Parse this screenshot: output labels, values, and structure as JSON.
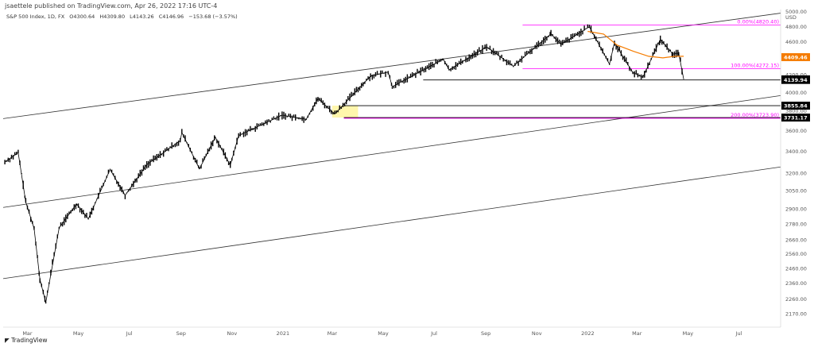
{
  "header": {
    "published": "jsaettele published on TradingView.com, Apr 26, 2022 17:16 UTC-4"
  },
  "legend": {
    "symbol": "S&P 500 Index, 1D, FX",
    "open": "O4300.64",
    "high": "H4309.80",
    "low": "L4143.26",
    "close": "C4146.96",
    "change": "−153.68 (−3.57%)"
  },
  "footer": {
    "brand": "TradingView"
  },
  "colors": {
    "accent": "#ff00ff",
    "ma": "#f57c00",
    "candle": "#000000",
    "zone": "#fff59d"
  },
  "chart_data": {
    "type": "line",
    "series_note": "",
    "currency": "USD",
    "x_range": [
      "2020-02-01",
      "2022-08-20"
    ],
    "ylim": [
      2090,
      5030
    ],
    "y_scale": "log",
    "x_ticks": [
      "Mar",
      "May",
      "Jul",
      "Sep",
      "Nov",
      "2021",
      "Mar",
      "May",
      "Jul",
      "Sep",
      "Nov",
      "2022",
      "Mar",
      "May",
      "Jul"
    ],
    "x_tick_dates": [
      "2020-03-01",
      "2020-05-01",
      "2020-07-01",
      "2020-09-01",
      "2020-11-01",
      "2021-01-01",
      "2021-03-01",
      "2021-05-01",
      "2021-07-01",
      "2021-09-01",
      "2021-11-01",
      "2022-01-01",
      "2022-03-01",
      "2022-05-01",
      "2022-07-01"
    ],
    "y_ticks": [
      2170,
      2260,
      2360,
      2460,
      2560,
      2660,
      2780,
      2900,
      3050,
      3200,
      3400,
      3600,
      3800,
      4000,
      4200,
      4400,
      4600,
      4800,
      5000
    ],
    "y_tick_labels": [
      "2170.00",
      "2260.00",
      "2360.00",
      "2460.00",
      "2560.00",
      "2660.00",
      "2780.00",
      "2900.00",
      "3050.00",
      "3200.00",
      "3400.00",
      "3600.00",
      "3800.00",
      "4000.00",
      "4200.00",
      "4400.00",
      "4600.00",
      "4800.00",
      "5000.00"
    ],
    "price_path": [
      [
        "2020-02-03",
        3300
      ],
      [
        "2020-02-19",
        3386
      ],
      [
        "2020-02-28",
        2954
      ],
      [
        "2020-03-09",
        2746
      ],
      [
        "2020-03-16",
        2386
      ],
      [
        "2020-03-23",
        2237
      ],
      [
        "2020-04-08",
        2750
      ],
      [
        "2020-04-29",
        2939
      ],
      [
        "2020-05-13",
        2820
      ],
      [
        "2020-06-08",
        3232
      ],
      [
        "2020-06-26",
        3009
      ],
      [
        "2020-07-22",
        3276
      ],
      [
        "2020-08-31",
        3500
      ],
      [
        "2020-09-02",
        3580
      ],
      [
        "2020-09-23",
        3237
      ],
      [
        "2020-10-12",
        3534
      ],
      [
        "2020-10-30",
        3270
      ],
      [
        "2020-11-09",
        3550
      ],
      [
        "2020-12-31",
        3756
      ],
      [
        "2021-01-29",
        3714
      ],
      [
        "2021-02-12",
        3934
      ],
      [
        "2021-03-04",
        3768
      ],
      [
        "2021-04-16",
        4185
      ],
      [
        "2021-05-12",
        4063
      ],
      [
        "2021-05-07",
        4232
      ],
      [
        "2021-07-12",
        4384
      ],
      [
        "2021-07-19",
        4258
      ],
      [
        "2021-08-31",
        4523
      ],
      [
        "2021-09-02",
        4537
      ],
      [
        "2021-10-04",
        4300
      ],
      [
        "2021-11-18",
        4704
      ],
      [
        "2021-11-30",
        4567
      ],
      [
        "2022-01-03",
        4796
      ],
      [
        "2022-01-27",
        4326
      ],
      [
        "2022-02-02",
        4589
      ],
      [
        "2022-02-24",
        4225
      ],
      [
        "2022-03-08",
        4170
      ],
      [
        "2022-03-29",
        4631
      ],
      [
        "2022-04-13",
        4446
      ],
      [
        "2022-04-20",
        4459
      ],
      [
        "2022-04-26",
        4147
      ]
    ],
    "moving_average": [
      [
        "2022-01-01",
        4735
      ],
      [
        "2022-01-20",
        4700
      ],
      [
        "2022-02-05",
        4560
      ],
      [
        "2022-02-25",
        4480
      ],
      [
        "2022-03-15",
        4420
      ],
      [
        "2022-04-01",
        4400
      ],
      [
        "2022-04-15",
        4420
      ],
      [
        "2022-04-26",
        4420
      ]
    ],
    "horizontal_levels": [
      {
        "value": 4820.4,
        "label": "0.00%(4820.40)",
        "color": "#ff00ff",
        "from": "2021-10-15"
      },
      {
        "value": 4272.15,
        "label": "100.00%(4272.15)",
        "color": "#ff00ff",
        "from": "2021-10-15"
      },
      {
        "value": 4139.94,
        "label": "",
        "color": "#000000",
        "from": "2021-06-18"
      },
      {
        "value": 3855.84,
        "label": "",
        "color": "#000000",
        "from": "2021-03-15"
      },
      {
        "value": 3731.17,
        "label": "",
        "color": "#000000",
        "from": "2021-03-15"
      },
      {
        "value": 3723.9,
        "label": "200.00%(3723.90)",
        "color": "#ff00ff",
        "from": "2021-03-15"
      }
    ],
    "price_labels": [
      {
        "value": 4409.46,
        "text": "4409.46",
        "bg": "#f57c00"
      },
      {
        "value": 4146.96,
        "text": "4146.96",
        "bg": "#000000"
      },
      {
        "value": 4139.94,
        "text": "4139.94",
        "bg": "#000000"
      },
      {
        "value": 3855.84,
        "text": "3855.84",
        "bg": "#000000"
      },
      {
        "value": 3731.17,
        "text": "3731.17",
        "bg": "#000000"
      }
    ],
    "trend_lines": [
      [
        [
          "2020-02-01",
          3720
        ],
        [
          "2022-08-20",
          4980
        ]
      ],
      [
        [
          "2020-02-01",
          2910
        ],
        [
          "2022-08-20",
          3965
        ]
      ],
      [
        [
          "2020-02-01",
          2390
        ],
        [
          "2022-08-20",
          3255
        ]
      ]
    ],
    "zone": {
      "x0": "2021-03-01",
      "x1": "2021-04-01",
      "y0": 3731.17,
      "y1": 3855.84
    }
  }
}
